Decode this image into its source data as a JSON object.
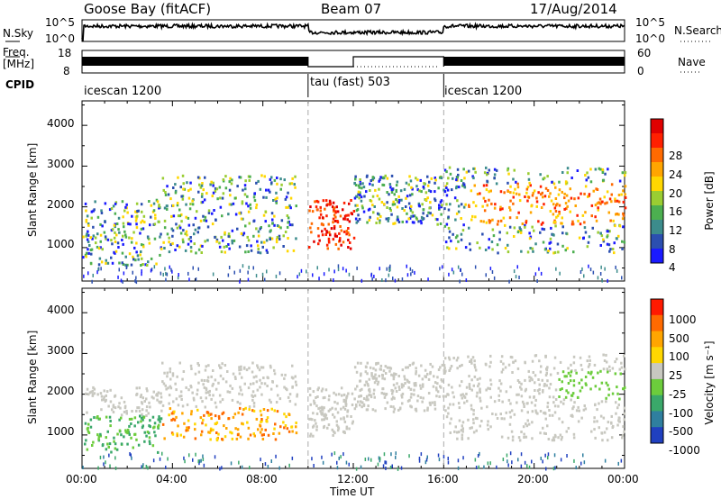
{
  "header": {
    "radar": "Goose Bay (fitACF)",
    "beam": "Beam 07",
    "date": "17/Aug/2014"
  },
  "noise_panel": {
    "left_label": "N.Sky",
    "right_label": "N.Search",
    "left_ticks": [
      "10^5",
      "10^0"
    ],
    "right_ticks": [
      "10^5",
      "10^0"
    ]
  },
  "freq_panel": {
    "left_label_line1": "Freq.",
    "left_label_line2": "[MHz]",
    "right_label": "Nave",
    "left_ticks": [
      "18",
      "8"
    ],
    "right_ticks": [
      "60",
      "0"
    ]
  },
  "cpid_panel": {
    "label": "CPID",
    "segments": [
      {
        "name": "icescan 1200",
        "start_h": 0,
        "end_h": 10
      },
      {
        "name": "tau (fast) 503",
        "start_h": 10,
        "end_h": 16
      },
      {
        "name": "icescan 1200",
        "start_h": 16,
        "end_h": 24
      }
    ]
  },
  "x_axis": {
    "label": "Time UT",
    "ticks": [
      "00:00",
      "04:00",
      "08:00",
      "12:00",
      "16:00",
      "20:00",
      "00:00"
    ]
  },
  "range_axis": {
    "label": "Slant Range [km]",
    "ticks": [
      "1000",
      "2000",
      "3000",
      "4000"
    ]
  },
  "power_colorbar": {
    "title": "Power [dB]",
    "ticks": [
      "4",
      "8",
      "12",
      "16",
      "20",
      "24",
      "28"
    ],
    "colors": [
      "#1a1aff",
      "#2b4fb0",
      "#3c8c8c",
      "#4caf50",
      "#9acd32",
      "#ffd700",
      "#ffa500",
      "#ff6a00",
      "#ff2000",
      "#e00000"
    ]
  },
  "velocity_colorbar": {
    "title": "Velocity [m s⁻¹]",
    "ticks": [
      "1000",
      "500",
      "100",
      "25",
      "-25",
      "-100",
      "-500",
      "-1000"
    ],
    "colors": [
      "#2040c0",
      "#2f7f9f",
      "#3aa86a",
      "#6ccc3c",
      "#c8c8c0",
      "#ffd700",
      "#ffa500",
      "#ff6a00",
      "#ff1a00"
    ]
  },
  "chart_data": {
    "type": "heatmap",
    "x_range_hours": [
      0,
      24
    ],
    "y_range_km": [
      180,
      4600
    ],
    "mode_change_hours": [
      10,
      16
    ],
    "grid": false
  }
}
